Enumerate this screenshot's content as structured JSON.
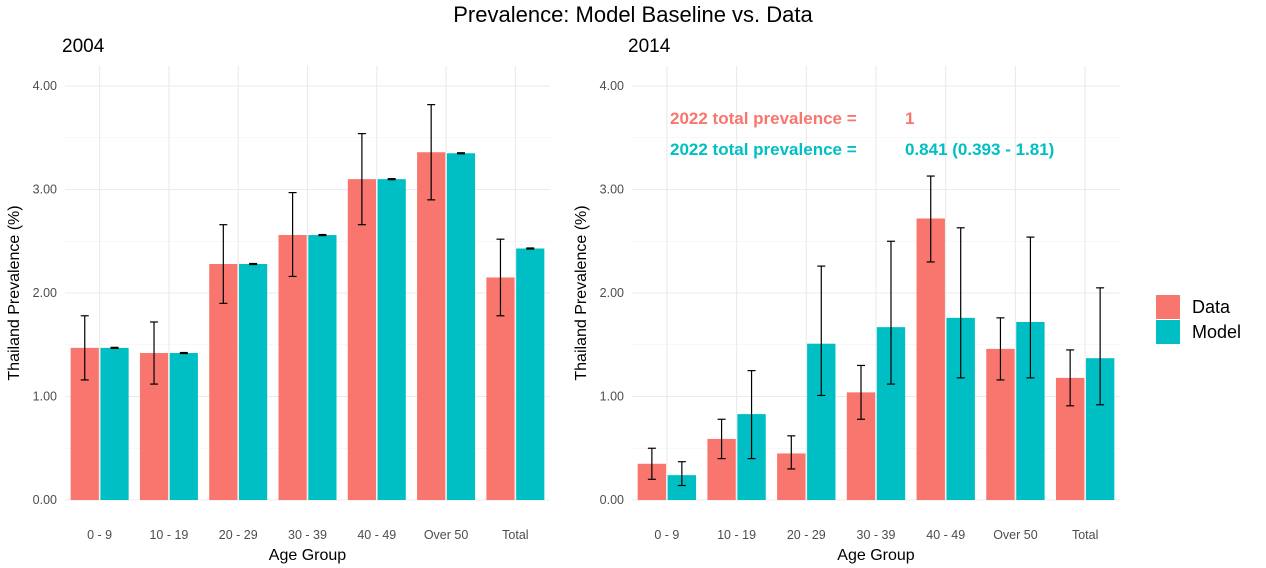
{
  "figure": {
    "title": "Prevalence: Model Baseline vs. Data"
  },
  "legend": {
    "placement": "right",
    "items": [
      {
        "label": "Data",
        "color": "#F8766D"
      },
      {
        "label": "Model",
        "color": "#00BFC4"
      }
    ]
  },
  "chart_data": [
    {
      "type": "bar",
      "title": "2004",
      "xlabel": "Age Group",
      "ylabel": "Thailand Prevalence (%)",
      "ylim": [
        0,
        4.0
      ],
      "yticks": [
        "0.00",
        "1.00",
        "2.00",
        "3.00",
        "4.00"
      ],
      "grid": true,
      "categories": [
        "0 - 9",
        "10 - 19",
        "20 - 29",
        "30 - 39",
        "40 - 49",
        "Over 50",
        "Total"
      ],
      "series": [
        {
          "name": "Data",
          "color": "#F8766D",
          "values": [
            1.47,
            1.42,
            2.28,
            2.56,
            3.1,
            3.36,
            2.15
          ],
          "err_low": [
            1.16,
            1.12,
            1.9,
            2.16,
            2.66,
            2.9,
            1.78
          ],
          "err_high": [
            1.78,
            1.72,
            2.66,
            2.97,
            3.54,
            3.82,
            2.52
          ]
        },
        {
          "name": "Model",
          "color": "#00BFC4",
          "values": [
            1.47,
            1.42,
            2.28,
            2.56,
            3.1,
            3.35,
            2.43
          ],
          "err_low": [
            1.465,
            1.415,
            2.275,
            2.555,
            3.095,
            3.345,
            2.425
          ],
          "err_high": [
            1.475,
            1.425,
            2.285,
            2.565,
            3.105,
            3.355,
            2.435
          ]
        }
      ],
      "annotations": []
    },
    {
      "type": "bar",
      "title": "2014",
      "xlabel": "Age Group",
      "ylabel": "Thailand Prevalence (%)",
      "ylim": [
        0,
        4.0
      ],
      "yticks": [
        "0.00",
        "1.00",
        "2.00",
        "3.00",
        "4.00"
      ],
      "grid": true,
      "categories": [
        "0 - 9",
        "10 - 19",
        "20 - 29",
        "30 - 39",
        "40 - 49",
        "Over 50",
        "Total"
      ],
      "series": [
        {
          "name": "Data",
          "color": "#F8766D",
          "values": [
            0.35,
            0.59,
            0.45,
            1.04,
            2.72,
            1.46,
            1.18
          ],
          "err_low": [
            0.2,
            0.4,
            0.3,
            0.78,
            2.3,
            1.16,
            0.91
          ],
          "err_high": [
            0.5,
            0.78,
            0.62,
            1.3,
            3.13,
            1.76,
            1.45
          ]
        },
        {
          "name": "Model",
          "color": "#00BFC4",
          "values": [
            0.24,
            0.83,
            1.51,
            1.67,
            1.76,
            1.72,
            1.37
          ],
          "err_low": [
            0.14,
            0.4,
            1.01,
            1.12,
            1.18,
            1.18,
            0.92
          ],
          "err_high": [
            0.37,
            1.25,
            2.26,
            2.5,
            2.63,
            2.54,
            2.05
          ]
        }
      ],
      "annotations": [
        {
          "prefix": "2022 total prevalence =",
          "value": "1",
          "color": "#F8766D"
        },
        {
          "prefix": "2022 total prevalence =",
          "value": "0.841 (0.393 - 1.81)",
          "color": "#00BFC4"
        }
      ]
    }
  ]
}
